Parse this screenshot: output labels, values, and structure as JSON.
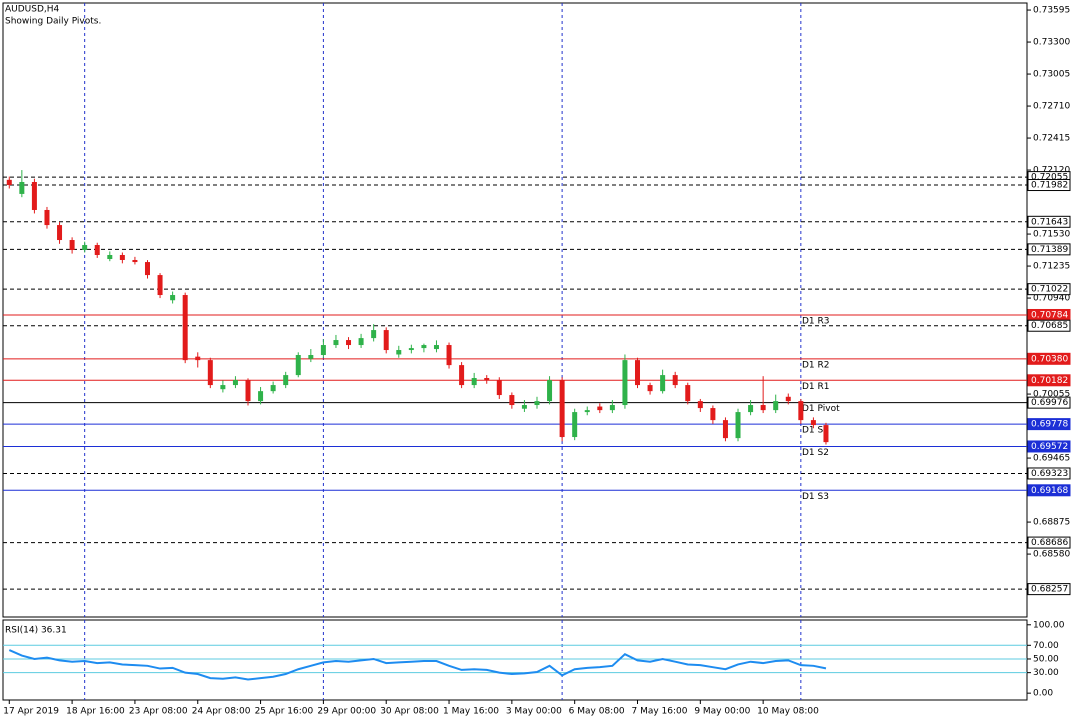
{
  "window": {
    "symbol": "AUDUSD,H4",
    "note": "Showing Daily Pivots."
  },
  "chart_data": [
    {
      "type": "candlestick",
      "x": [
        0,
        1,
        2,
        3,
        4,
        5,
        6,
        7,
        8,
        9,
        10,
        11,
        12,
        13,
        14,
        15,
        16,
        17,
        18,
        19,
        20,
        21,
        22,
        23,
        24,
        25,
        26,
        27,
        28,
        29,
        30,
        31,
        32,
        33,
        34,
        35,
        36,
        37,
        38,
        39,
        40,
        41,
        42,
        43,
        44,
        45,
        46,
        47,
        48,
        49,
        50,
        51,
        52,
        53,
        54,
        55,
        56,
        57,
        58,
        59,
        60,
        61,
        62,
        63,
        64,
        65
      ],
      "open": [
        0.7203,
        0.719,
        0.7201,
        0.71752,
        0.71613,
        0.71475,
        0.71383,
        0.71429,
        0.713,
        0.71337,
        0.71291,
        0.71272,
        0.71152,
        0.7092,
        0.70968,
        0.704,
        0.70368,
        0.701,
        0.70138,
        0.70184,
        0.6999,
        0.70082,
        0.70138,
        0.7023,
        0.7038,
        0.70415,
        0.70507,
        0.70553,
        0.70507,
        0.70571,
        0.70645,
        0.7042,
        0.70461,
        0.70479,
        0.7047,
        0.70507,
        0.70322,
        0.70138,
        0.70203,
        0.70184,
        0.70046,
        0.6992,
        0.69954,
        0.6999,
        0.70184,
        0.69659,
        0.69889,
        0.6994,
        0.69907,
        0.69954,
        0.70368,
        0.70138,
        0.70082,
        0.7023,
        0.70138,
        0.6999,
        0.69926,
        0.69815,
        0.69649,
        0.69889,
        0.69954,
        0.69907,
        0.7003,
        0.6999,
        0.69815,
        0.69769
      ],
      "high": [
        0.7206,
        0.7212,
        0.7204,
        0.7178,
        0.7164,
        0.715,
        0.7146,
        0.7145,
        0.7137,
        0.7136,
        0.7132,
        0.7129,
        0.7117,
        0.71,
        0.7099,
        0.7044,
        0.7039,
        0.7018,
        0.7022,
        0.702,
        0.7012,
        0.7017,
        0.7026,
        0.7044,
        0.7047,
        0.7056,
        0.706,
        0.7058,
        0.7061,
        0.707,
        0.7067,
        0.705,
        0.7051,
        0.7052,
        0.7055,
        0.7053,
        0.7035,
        0.7025,
        0.7023,
        0.7021,
        0.7007,
        0.7,
        0.7003,
        0.7022,
        0.7021,
        0.6992,
        0.6994,
        0.6997,
        0.7,
        0.7042,
        0.7039,
        0.7016,
        0.7028,
        0.7026,
        0.7016,
        0.7001,
        0.6995,
        0.6984,
        0.6992,
        0.7,
        0.7022,
        0.7005,
        0.7006,
        0.7001,
        0.6984,
        0.6979
      ],
      "low": [
        0.7195,
        0.7187,
        0.7172,
        0.7158,
        0.7144,
        0.7135,
        0.7136,
        0.7131,
        0.7128,
        0.7126,
        0.7125,
        0.7112,
        0.7094,
        0.7089,
        0.7034,
        0.703,
        0.7011,
        0.7007,
        0.7011,
        0.6995,
        0.6996,
        0.7006,
        0.7011,
        0.7021,
        0.7035,
        0.7039,
        0.7048,
        0.7047,
        0.7048,
        0.7054,
        0.7043,
        0.7039,
        0.7043,
        0.7044,
        0.7044,
        0.7029,
        0.7011,
        0.7011,
        0.7015,
        0.7001,
        0.6992,
        0.6989,
        0.6992,
        0.6996,
        0.6962,
        0.6963,
        0.6986,
        0.6988,
        0.6988,
        0.6992,
        0.7011,
        0.7005,
        0.7006,
        0.7011,
        0.6996,
        0.6989,
        0.6978,
        0.6962,
        0.6962,
        0.6986,
        0.6988,
        0.6988,
        0.6996,
        0.6978,
        0.6974,
        0.6959
      ],
      "close": [
        0.71982,
        0.7201,
        0.71752,
        0.71613,
        0.71475,
        0.71383,
        0.71429,
        0.71337,
        0.71337,
        0.71291,
        0.71272,
        0.71152,
        0.70968,
        0.70968,
        0.70368,
        0.70368,
        0.70138,
        0.70138,
        0.70184,
        0.6999,
        0.70082,
        0.70138,
        0.7023,
        0.70415,
        0.70415,
        0.70507,
        0.70553,
        0.70507,
        0.70571,
        0.70645,
        0.70461,
        0.70461,
        0.70479,
        0.70507,
        0.70507,
        0.70322,
        0.70138,
        0.70203,
        0.70184,
        0.70046,
        0.69954,
        0.69954,
        0.6999,
        0.70184,
        0.69659,
        0.69889,
        0.69907,
        0.69907,
        0.69954,
        0.70368,
        0.70138,
        0.70082,
        0.7023,
        0.70138,
        0.6999,
        0.69926,
        0.69815,
        0.69649,
        0.69889,
        0.69954,
        0.69907,
        0.6999,
        0.6999,
        0.69815,
        0.69769,
        0.69612
      ],
      "up_color": "#2fb24a",
      "down_color": "#e21b1b",
      "xlim": [
        -0.5,
        81
      ],
      "ylim": [
        0.68,
        0.7366
      ],
      "separators": [
        6,
        25,
        44,
        63
      ],
      "xticks": [
        {
          "value": 0,
          "label": "17 Apr 2019"
        },
        {
          "value": 5,
          "label": "18 Apr 16:00"
        },
        {
          "value": 10,
          "label": "23 Apr 08:00"
        },
        {
          "value": 15,
          "label": "24 Apr 08:00"
        },
        {
          "value": 20,
          "label": "25 Apr 16:00"
        },
        {
          "value": 25,
          "label": "29 Apr 00:00"
        },
        {
          "value": 30,
          "label": "30 Apr 08:00"
        },
        {
          "value": 35,
          "label": "1 May 16:00"
        },
        {
          "value": 40,
          "label": "3 May 00:00"
        },
        {
          "value": 45,
          "label": "6 May 08:00"
        },
        {
          "value": 50,
          "label": "7 May 16:00"
        },
        {
          "value": 55,
          "label": "9 May 00:00"
        },
        {
          "value": 60,
          "label": "10 May 08:00"
        }
      ],
      "yticks": [
        0.73595,
        {
          "value": 0.733,
          "label": "0.73300"
        },
        0.73005,
        {
          "value": 0.7271,
          "label": "0.72710"
        },
        0.72415,
        {
          "value": 0.7212,
          "label": "0.72120"
        },
        {
          "value": 0.7153,
          "label": "0.71530"
        },
        0.71235,
        {
          "value": 0.7094,
          "label": "0.70940"
        },
        0.70055,
        0.69465,
        0.68875,
        {
          "value": 0.6858,
          "label": "0.68580"
        }
      ],
      "levels": [
        {
          "value": 0.72055,
          "label": "0.72055",
          "style": "dash",
          "color": "#000000"
        },
        {
          "value": 0.71982,
          "label": "0.71982",
          "style": "dash",
          "color": "#000000"
        },
        {
          "value": 0.71643,
          "label": "0.71643",
          "style": "dash",
          "color": "#000000"
        },
        {
          "value": 0.71389,
          "label": "0.71389",
          "style": "dash",
          "color": "#000000"
        },
        {
          "value": 0.71022,
          "label": "0.71022",
          "style": "dash",
          "color": "#000000"
        },
        {
          "value": 0.70784,
          "label": "0.70784",
          "name": "D1 R3",
          "style": "solid",
          "color": "#e21b1b"
        },
        {
          "value": 0.70685,
          "label": "0.70685",
          "style": "dash",
          "color": "#000000"
        },
        {
          "value": 0.7038,
          "label": "0.70380",
          "name": "D1 R2",
          "style": "solid",
          "color": "#e21b1b"
        },
        {
          "value": 0.70182,
          "label": "0.70182",
          "name": "D1 R1",
          "style": "solid",
          "color": "#e21b1b"
        },
        {
          "value": 0.69976,
          "label": "0.69976",
          "name": "D1 Pivot",
          "style": "solid",
          "color": "#000000"
        },
        {
          "value": 0.69778,
          "label": "0.69778",
          "name": "D1 S1",
          "style": "solid",
          "color": "#1c2fd6"
        },
        {
          "value": 0.69572,
          "label": "0.69572",
          "name": "D1 S2",
          "style": "solid",
          "color": "#1c2fd6"
        },
        {
          "value": 0.69323,
          "label": "0.69323",
          "style": "dash",
          "color": "#000000"
        },
        {
          "value": 0.69168,
          "label": "0.69168",
          "name": "D1 S3",
          "style": "solid",
          "color": "#1c2fd6"
        },
        {
          "value": 0.68686,
          "label": "0.68686",
          "style": "dash",
          "color": "#000000"
        },
        {
          "value": 0.68257,
          "label": "0.68257",
          "style": "dash",
          "color": "#000000"
        }
      ]
    },
    {
      "type": "line",
      "title": "RSI(14) 36.31",
      "x": [
        0,
        1,
        2,
        3,
        4,
        5,
        6,
        7,
        8,
        9,
        10,
        11,
        12,
        13,
        14,
        15,
        16,
        17,
        18,
        19,
        20,
        21,
        22,
        23,
        24,
        25,
        26,
        27,
        28,
        29,
        30,
        31,
        32,
        33,
        34,
        35,
        36,
        37,
        38,
        39,
        40,
        41,
        42,
        43,
        44,
        45,
        46,
        47,
        48,
        49,
        50,
        51,
        52,
        53,
        54,
        55,
        56,
        57,
        58,
        59,
        60,
        61,
        62,
        63,
        64,
        65
      ],
      "values": [
        63,
        55,
        50,
        52,
        48,
        46,
        47,
        44,
        45,
        42,
        41,
        40,
        36,
        37,
        30,
        28,
        22,
        21,
        23,
        20,
        22,
        24,
        28,
        35,
        40,
        45,
        47,
        46,
        48,
        50,
        44,
        45,
        46,
        47,
        47,
        40,
        34,
        35,
        34,
        30,
        28,
        29,
        31,
        40,
        26,
        35,
        37,
        38,
        40,
        57,
        48,
        46,
        50,
        46,
        42,
        41,
        38,
        35,
        42,
        46,
        44,
        47,
        48,
        41,
        40,
        36.31
      ],
      "color": "#1e8cf0",
      "level_color": "#5ccbe0",
      "xlim": [
        -0.5,
        81
      ],
      "ylim": [
        -10,
        107
      ],
      "separators": [
        6,
        25,
        44,
        63
      ],
      "yticks": [
        {
          "value": 100,
          "label": "100.00"
        },
        {
          "value": 70,
          "label": "70.00"
        },
        {
          "value": 50,
          "label": "50.00"
        },
        {
          "value": 30,
          "label": "30.00"
        },
        {
          "value": 0,
          "label": "0.00"
        }
      ],
      "levels": [
        70,
        50,
        30
      ]
    }
  ]
}
